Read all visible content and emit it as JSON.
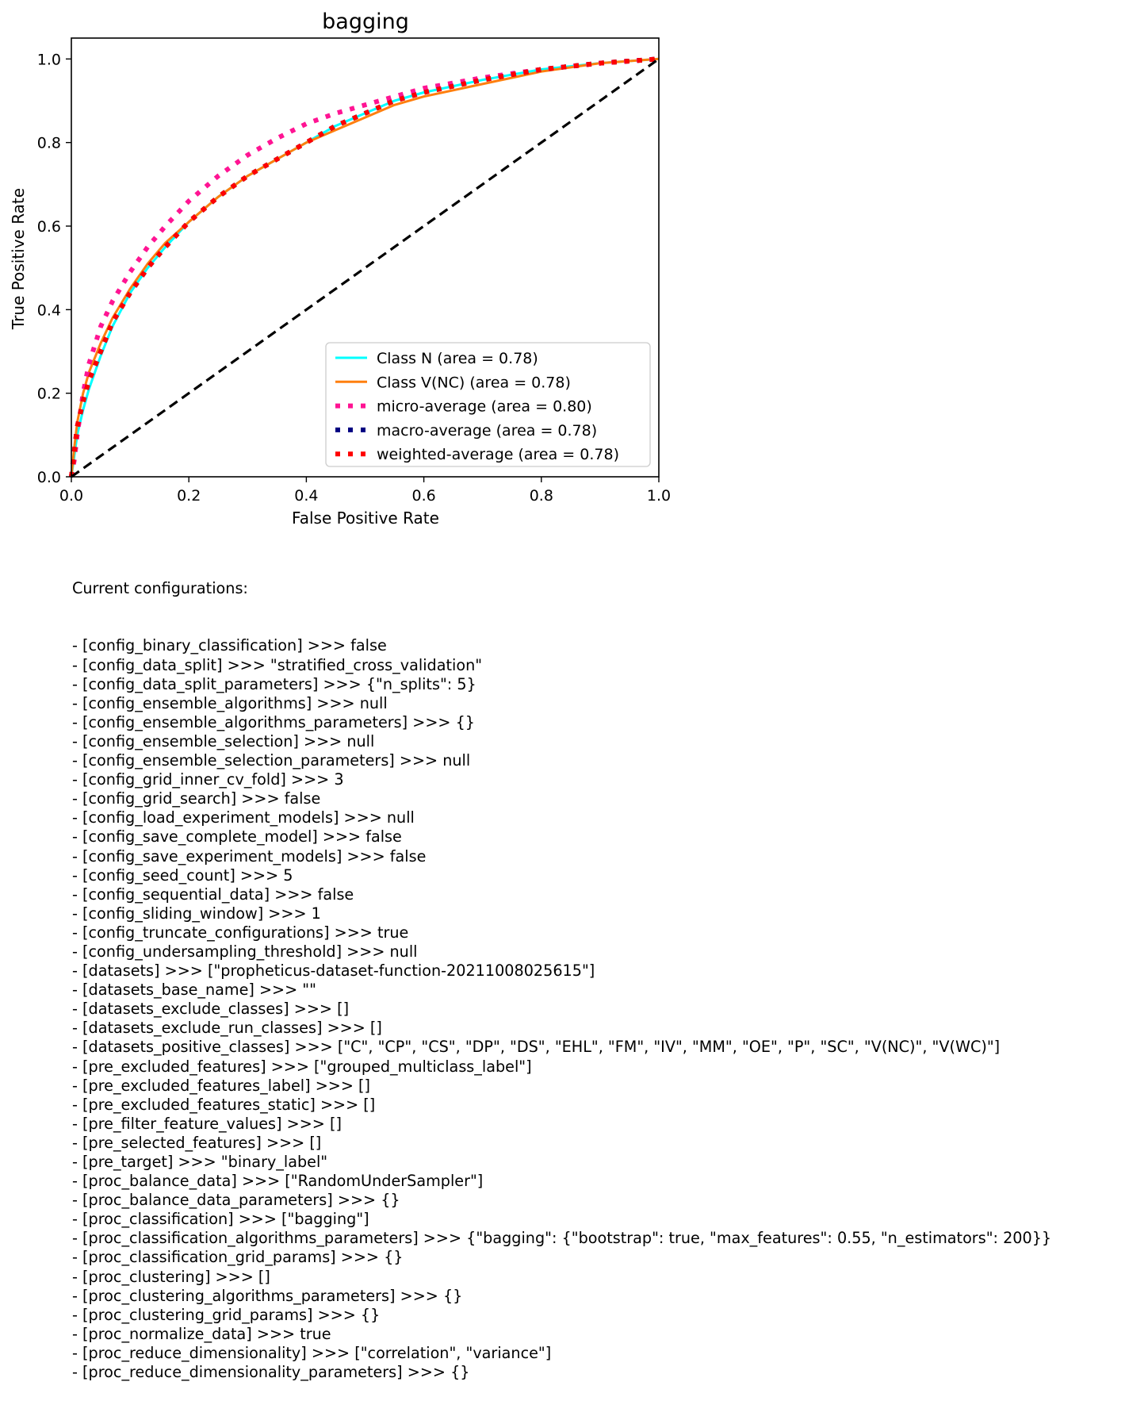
{
  "chart_data": {
    "type": "line",
    "title": "bagging",
    "xlabel": "False Positive Rate",
    "ylabel": "True Positive Rate",
    "xlim": [
      0,
      1
    ],
    "ylim": [
      0,
      1.05
    ],
    "xticks": [
      "0.0",
      "0.2",
      "0.4",
      "0.6",
      "0.8",
      "1.0"
    ],
    "yticks": [
      "0.0",
      "0.2",
      "0.4",
      "0.6",
      "0.8",
      "1.0"
    ],
    "grid": false,
    "legend_position": "lower right",
    "series": [
      {
        "name": "Class N (area = 0.78)",
        "color": "#00ffff",
        "style": "solid",
        "x": [
          0,
          0.005,
          0.01,
          0.02,
          0.03,
          0.05,
          0.07,
          0.1,
          0.13,
          0.16,
          0.2,
          0.25,
          0.3,
          0.35,
          0.4,
          0.45,
          0.5,
          0.55,
          0.6,
          0.7,
          0.8,
          0.9,
          1.0
        ],
        "y": [
          0,
          0.05,
          0.1,
          0.16,
          0.21,
          0.29,
          0.36,
          0.44,
          0.5,
          0.55,
          0.61,
          0.67,
          0.72,
          0.76,
          0.8,
          0.84,
          0.87,
          0.9,
          0.92,
          0.95,
          0.975,
          0.99,
          1.0
        ]
      },
      {
        "name": "Class V(NC) (area = 0.78)",
        "color": "#ff7f0e",
        "style": "solid",
        "x": [
          0,
          0.005,
          0.01,
          0.02,
          0.03,
          0.05,
          0.07,
          0.1,
          0.13,
          0.16,
          0.2,
          0.25,
          0.3,
          0.35,
          0.4,
          0.45,
          0.5,
          0.55,
          0.6,
          0.7,
          0.8,
          0.9,
          1.0
        ],
        "y": [
          0,
          0.07,
          0.13,
          0.2,
          0.25,
          0.32,
          0.38,
          0.45,
          0.51,
          0.56,
          0.61,
          0.67,
          0.72,
          0.76,
          0.8,
          0.83,
          0.86,
          0.89,
          0.91,
          0.94,
          0.97,
          0.99,
          1.0
        ]
      },
      {
        "name": "micro-average (area = 0.80)",
        "color": "#ff1493",
        "style": "dotted",
        "x": [
          0,
          0.005,
          0.01,
          0.02,
          0.03,
          0.05,
          0.07,
          0.1,
          0.13,
          0.16,
          0.2,
          0.25,
          0.3,
          0.35,
          0.4,
          0.45,
          0.5,
          0.55,
          0.6,
          0.7,
          0.8,
          0.9,
          1.0
        ],
        "y": [
          0,
          0.04,
          0.1,
          0.2,
          0.27,
          0.36,
          0.42,
          0.49,
          0.55,
          0.6,
          0.66,
          0.72,
          0.77,
          0.81,
          0.845,
          0.87,
          0.89,
          0.91,
          0.93,
          0.955,
          0.975,
          0.99,
          1.0
        ]
      },
      {
        "name": "macro-average (area = 0.78)",
        "color": "#000080",
        "style": "dotted",
        "x": [
          0,
          0.005,
          0.01,
          0.02,
          0.03,
          0.05,
          0.07,
          0.1,
          0.13,
          0.16,
          0.2,
          0.25,
          0.3,
          0.35,
          0.4,
          0.45,
          0.5,
          0.55,
          0.6,
          0.7,
          0.8,
          0.9,
          1.0
        ],
        "y": [
          0,
          0.06,
          0.12,
          0.18,
          0.23,
          0.3,
          0.37,
          0.44,
          0.5,
          0.55,
          0.61,
          0.67,
          0.72,
          0.76,
          0.8,
          0.84,
          0.87,
          0.9,
          0.92,
          0.95,
          0.975,
          0.99,
          1.0
        ]
      },
      {
        "name": "weighted-average (area = 0.78)",
        "color": "#ff0000",
        "style": "dotted",
        "x": [
          0,
          0.005,
          0.01,
          0.02,
          0.03,
          0.05,
          0.07,
          0.1,
          0.13,
          0.16,
          0.2,
          0.25,
          0.3,
          0.35,
          0.4,
          0.45,
          0.5,
          0.55,
          0.6,
          0.7,
          0.8,
          0.9,
          1.0
        ],
        "y": [
          0,
          0.06,
          0.12,
          0.18,
          0.23,
          0.3,
          0.37,
          0.44,
          0.5,
          0.55,
          0.61,
          0.67,
          0.72,
          0.76,
          0.8,
          0.84,
          0.87,
          0.9,
          0.92,
          0.95,
          0.975,
          0.99,
          1.0
        ]
      }
    ],
    "reference_line": {
      "x": [
        0,
        1
      ],
      "y": [
        0,
        1
      ],
      "color": "#000000",
      "style": "dashed"
    }
  },
  "config": {
    "heading": "Current configurations:",
    "lines": [
      "- [config_binary_classification] >>> false",
      "- [config_data_split] >>> \"stratified_cross_validation\"",
      "- [config_data_split_parameters] >>> {\"n_splits\": 5}",
      "- [config_ensemble_algorithms] >>> null",
      "- [config_ensemble_algorithms_parameters] >>> {}",
      "- [config_ensemble_selection] >>> null",
      "- [config_ensemble_selection_parameters] >>> null",
      "- [config_grid_inner_cv_fold] >>> 3",
      "- [config_grid_search] >>> false",
      "- [config_load_experiment_models] >>> null",
      "- [config_save_complete_model] >>> false",
      "- [config_save_experiment_models] >>> false",
      "- [config_seed_count] >>> 5",
      "- [config_sequential_data] >>> false",
      "- [config_sliding_window] >>> 1",
      "- [config_truncate_configurations] >>> true",
      "- [config_undersampling_threshold] >>> null",
      "- [datasets] >>> [\"propheticus-dataset-function-20211008025615\"]",
      "- [datasets_base_name] >>> \"\"",
      "- [datasets_exclude_classes] >>> []",
      "- [datasets_exclude_run_classes] >>> []",
      "- [datasets_positive_classes] >>> [\"C\", \"CP\", \"CS\", \"DP\", \"DS\", \"EHL\", \"FM\", \"IV\", \"MM\", \"OE\", \"P\", \"SC\", \"V(NC)\", \"V(WC)\"]",
      "- [pre_excluded_features] >>> [\"grouped_multiclass_label\"]",
      "- [pre_excluded_features_label] >>> []",
      "- [pre_excluded_features_static] >>> []",
      "- [pre_filter_feature_values] >>> []",
      "- [pre_selected_features] >>> []",
      "- [pre_target] >>> \"binary_label\"",
      "- [proc_balance_data] >>> [\"RandomUnderSampler\"]",
      "- [proc_balance_data_parameters] >>> {}",
      "- [proc_classification] >>> [\"bagging\"]",
      "- [proc_classification_algorithms_parameters] >>> {\"bagging\": {\"bootstrap\": true, \"max_features\": 0.55, \"n_estimators\": 200}}",
      "- [proc_classification_grid_params] >>> {}",
      "- [proc_clustering] >>> []",
      "- [proc_clustering_algorithms_parameters] >>> {}",
      "- [proc_clustering_grid_params] >>> {}",
      "- [proc_normalize_data] >>> true",
      "- [proc_reduce_dimensionality] >>> [\"correlation\", \"variance\"]",
      "- [proc_reduce_dimensionality_parameters] >>> {}"
    ]
  }
}
